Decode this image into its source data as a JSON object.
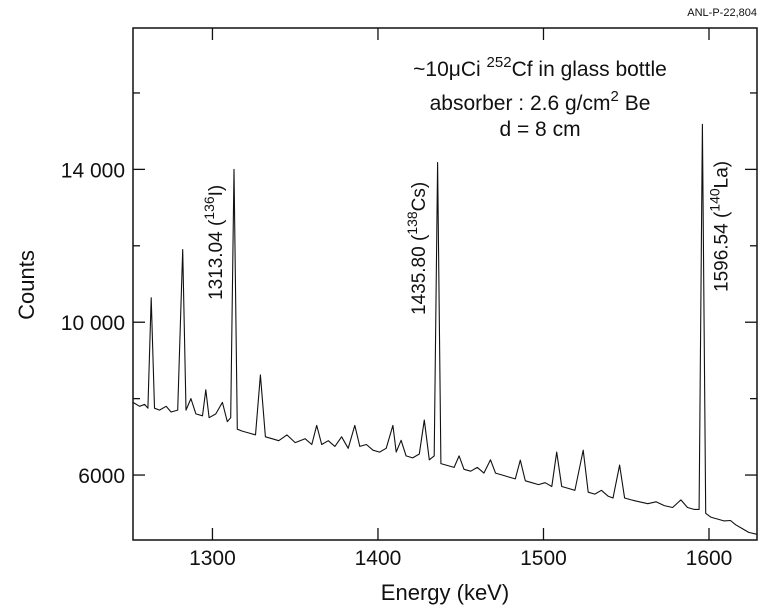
{
  "chart_data": {
    "type": "line",
    "note_id": "ANL-P-22,804",
    "xlabel": "Energy  (keV)",
    "ylabel": "Counts",
    "annotations": [
      {
        "text": "~10μCi  ",
        "sup": "252",
        "text2": "Cf  in glass bottle"
      },
      {
        "text": "absorber : 2.6 g/cm",
        "sup": "2",
        "text2": "  Be"
      },
      {
        "text": "d = 8 cm"
      }
    ],
    "peak_labels": [
      {
        "energy": 1313.04,
        "text": "1313.04 (",
        "sup": "136",
        "text2": "I)"
      },
      {
        "energy": 1435.8,
        "text": "1435.80 (",
        "sup": "138",
        "text2": "Cs)"
      },
      {
        "energy": 1596.54,
        "text": "1596.54 (",
        "sup": "140",
        "text2": "La)"
      }
    ],
    "xlim": [
      1252,
      1629
    ],
    "ylim": [
      4300,
      17700
    ],
    "xticks": [
      1300,
      1400,
      1500,
      1600
    ],
    "yticks": [
      {
        "value": 6000,
        "label": "6000"
      },
      {
        "value": 10000,
        "label": "10 000"
      },
      {
        "value": 14000,
        "label": "14 000"
      }
    ],
    "yminor": [
      8000,
      12000,
      16000
    ],
    "grid": false,
    "series": [
      {
        "color": "#111111",
        "x": [
          1252,
          1256,
          1259,
          1261,
          1263,
          1265,
          1268,
          1272,
          1275,
          1279,
          1282,
          1284,
          1287,
          1290,
          1294,
          1296,
          1298,
          1302,
          1306,
          1309,
          1311,
          1313,
          1315,
          1318,
          1322,
          1326,
          1329,
          1332,
          1336,
          1340,
          1345,
          1350,
          1356,
          1360,
          1363,
          1366,
          1370,
          1374,
          1378,
          1382,
          1386,
          1389,
          1393,
          1397,
          1401,
          1405,
          1409,
          1411,
          1414,
          1417,
          1421,
          1425,
          1428,
          1431,
          1434,
          1436,
          1438,
          1442,
          1446,
          1449,
          1452,
          1456,
          1460,
          1464,
          1468,
          1471,
          1475,
          1479,
          1483,
          1486,
          1489,
          1493,
          1497,
          1501,
          1505,
          1508,
          1511,
          1515,
          1519,
          1524,
          1527,
          1531,
          1535,
          1539,
          1542,
          1546,
          1549,
          1553,
          1558,
          1563,
          1568,
          1573,
          1578,
          1583,
          1587,
          1591,
          1594,
          1596,
          1598,
          1601,
          1605,
          1609,
          1613,
          1616,
          1620,
          1624,
          1629
        ],
        "values": [
          7900,
          7800,
          7850,
          7750,
          10640,
          7750,
          7700,
          7800,
          7650,
          7700,
          11900,
          7700,
          8000,
          7600,
          7550,
          8230,
          7500,
          7600,
          7900,
          7400,
          7500,
          14000,
          7200,
          7150,
          7100,
          7050,
          8620,
          7000,
          6950,
          6900,
          7050,
          6850,
          6950,
          6800,
          7300,
          6800,
          6900,
          6750,
          7000,
          6700,
          7300,
          6750,
          6800,
          6650,
          6600,
          6700,
          7300,
          6600,
          6910,
          6500,
          6450,
          6550,
          7440,
          6400,
          6500,
          14180,
          6300,
          6250,
          6200,
          6500,
          6150,
          6100,
          6200,
          6050,
          6400,
          6050,
          6000,
          5950,
          5900,
          6390,
          5850,
          5800,
          5750,
          5800,
          5700,
          6600,
          5700,
          5650,
          5600,
          6650,
          5550,
          5500,
          5600,
          5450,
          5400,
          6260,
          5400,
          5350,
          5300,
          5250,
          5300,
          5200,
          5150,
          5350,
          5150,
          5100,
          5100,
          15180,
          5000,
          4900,
          4850,
          4800,
          4810,
          4700,
          4600,
          4500,
          4450
        ]
      }
    ]
  }
}
